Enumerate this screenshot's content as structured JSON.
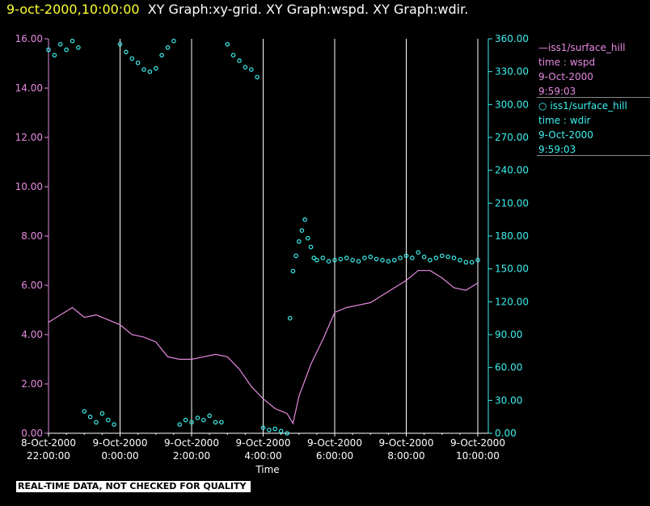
{
  "header": {
    "timestamp": "9-oct-2000,10:00:00",
    "graphs": "XY Graph:xy-grid.  XY Graph:wspd.  XY Graph:wdir."
  },
  "legend": {
    "wspd": {
      "source": "iss1/surface_hill",
      "field": "time : wspd",
      "date": "9-Oct-2000",
      "time": "9:59:03",
      "color": "#e58ae0"
    },
    "wdir": {
      "source": "iss1/surface_hill",
      "field": "time : wdir",
      "date": "9-Oct-2000",
      "time": "9:59:03",
      "color": "#3cf0ee"
    }
  },
  "footer": "REAL-TIME DATA, NOT CHECKED FOR QUALITY",
  "chart_data": {
    "type": "line",
    "xlabel": "Time",
    "x_ticks": [
      {
        "date": "8-Oct-2000",
        "time": "22:00:00"
      },
      {
        "date": "9-Oct-2000",
        "time": "0:00:00"
      },
      {
        "date": "9-Oct-2000",
        "time": "2:00:00"
      },
      {
        "date": "9-Oct-2000",
        "time": "4:00:00"
      },
      {
        "date": "9-Oct-2000",
        "time": "6:00:00"
      },
      {
        "date": "9-Oct-2000",
        "time": "8:00:00"
      },
      {
        "date": "9-Oct-2000",
        "time": "10:00:00"
      }
    ],
    "xlim": [
      "8-Oct-2000 22:00",
      "9-Oct-2000 10:00"
    ],
    "grid": "vertical",
    "legend_position": "right",
    "y_left": {
      "ylim": [
        0,
        16
      ],
      "ticks": [
        "0.00",
        "2.00",
        "4.00",
        "6.00",
        "8.00",
        "10.00",
        "12.00",
        "14.00",
        "16.00"
      ],
      "color": "#e58ae0"
    },
    "y_right": {
      "ylim": [
        0,
        360
      ],
      "ticks": [
        "0.00",
        "30.00",
        "60.00",
        "90.00",
        "120.00",
        "150.00",
        "180.00",
        "210.00",
        "240.00",
        "270.00",
        "300.00",
        "330.00",
        "360.00"
      ],
      "color": "#3cf0ee"
    },
    "series": [
      {
        "name": "wspd",
        "style": "line",
        "axis": "left",
        "x": [
          "22:00",
          "22:20",
          "22:40",
          "23:00",
          "23:20",
          "23:40",
          "0:00",
          "0:20",
          "0:40",
          "1:00",
          "1:20",
          "1:40",
          "2:00",
          "2:20",
          "2:40",
          "3:00",
          "3:20",
          "3:40",
          "4:00",
          "4:20",
          "4:40",
          "4:50",
          "5:00",
          "5:20",
          "5:40",
          "6:00",
          "6:20",
          "6:40",
          "7:00",
          "7:20",
          "7:40",
          "8:00",
          "8:20",
          "8:40",
          "9:00",
          "9:20",
          "9:40",
          "10:00"
        ],
        "y": [
          4.5,
          4.8,
          5.1,
          4.7,
          4.8,
          4.6,
          4.4,
          4.0,
          3.9,
          3.7,
          3.1,
          3.0,
          3.0,
          3.1,
          3.2,
          3.1,
          2.6,
          1.9,
          1.4,
          1.0,
          0.8,
          0.4,
          1.5,
          2.8,
          3.8,
          4.9,
          5.1,
          5.2,
          5.3,
          5.6,
          5.9,
          6.2,
          6.6,
          6.6,
          6.3,
          5.9,
          5.8,
          6.1
        ]
      },
      {
        "name": "wdir",
        "style": "scatter",
        "axis": "right",
        "x": [
          "22:00",
          "22:10",
          "22:20",
          "22:30",
          "22:40",
          "22:50",
          "23:00",
          "23:10",
          "23:20",
          "23:30",
          "23:40",
          "23:50",
          "0:00",
          "0:10",
          "0:20",
          "0:30",
          "0:40",
          "0:50",
          "1:00",
          "1:10",
          "1:20",
          "1:30",
          "1:40",
          "1:50",
          "2:00",
          "2:10",
          "2:20",
          "2:30",
          "2:40",
          "2:50",
          "3:00",
          "3:10",
          "3:20",
          "3:30",
          "3:40",
          "3:50",
          "4:00",
          "4:10",
          "4:20",
          "4:30",
          "4:40",
          "4:45",
          "4:50",
          "4:55",
          "5:00",
          "5:05",
          "5:10",
          "5:15",
          "5:20",
          "5:25",
          "5:30",
          "5:40",
          "5:50",
          "6:00",
          "6:10",
          "6:20",
          "6:30",
          "6:40",
          "6:50",
          "7:00",
          "7:10",
          "7:20",
          "7:30",
          "7:40",
          "7:50",
          "8:00",
          "8:10",
          "8:20",
          "8:30",
          "8:40",
          "8:50",
          "9:00",
          "9:10",
          "9:20",
          "9:30",
          "9:40",
          "9:50",
          "10:00"
        ],
        "y": [
          350,
          345,
          355,
          350,
          358,
          352,
          20,
          15,
          10,
          18,
          12,
          8,
          355,
          348,
          342,
          338,
          332,
          330,
          333,
          345,
          352,
          358,
          8,
          12,
          10,
          14,
          12,
          16,
          10,
          10,
          355,
          345,
          340,
          334,
          332,
          325,
          5,
          3,
          4,
          2,
          0,
          105,
          148,
          162,
          175,
          185,
          195,
          178,
          170,
          160,
          158,
          160,
          157,
          158,
          159,
          160,
          158,
          157,
          160,
          161,
          159,
          158,
          157,
          158,
          160,
          162,
          160,
          165,
          161,
          158,
          160,
          162,
          161,
          160,
          158,
          156,
          156,
          158
        ]
      }
    ]
  }
}
